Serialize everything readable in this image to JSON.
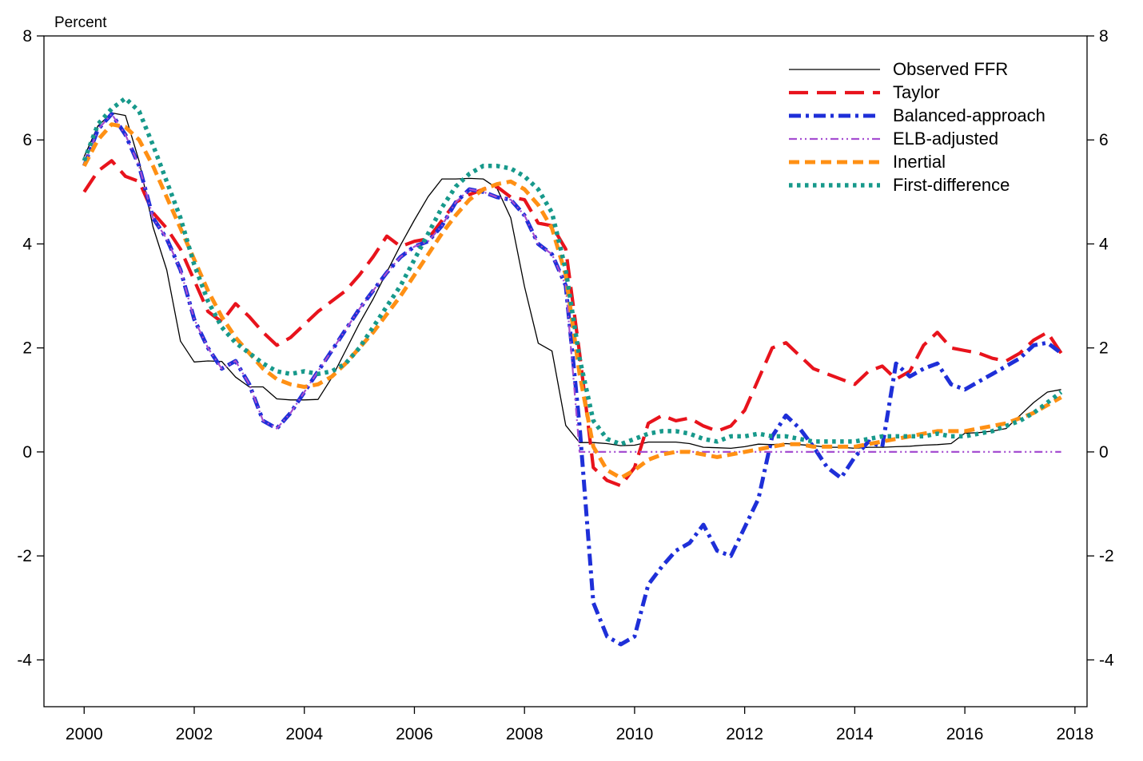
{
  "chart_data": {
    "type": "line",
    "title": "",
    "xlabel": "",
    "ylabel": "Percent",
    "xlim": [
      1999.27,
      2018.22
    ],
    "ylim": [
      -4.9,
      8
    ],
    "xticks": [
      2000,
      2002,
      2004,
      2006,
      2008,
      2010,
      2012,
      2014,
      2016,
      2018
    ],
    "yticks": [
      -4,
      -2,
      0,
      2,
      4,
      6,
      8
    ],
    "grid": false,
    "legend_position": "top-right",
    "x_start": 2000.0,
    "x_step": 0.25,
    "series": [
      {
        "name": "Observed FFR",
        "color": "#000000",
        "width": 1.3,
        "dash": "",
        "values": [
          5.68,
          6.27,
          6.52,
          6.47,
          5.59,
          4.33,
          3.5,
          2.13,
          1.73,
          1.75,
          1.74,
          1.44,
          1.25,
          1.25,
          1.02,
          1.0,
          1.0,
          1.01,
          1.43,
          1.95,
          2.47,
          2.94,
          3.46,
          3.98,
          4.46,
          4.91,
          5.25,
          5.25,
          5.26,
          5.25,
          5.07,
          4.5,
          3.18,
          2.09,
          1.94,
          0.51,
          0.18,
          0.18,
          0.16,
          0.12,
          0.13,
          0.19,
          0.19,
          0.19,
          0.16,
          0.09,
          0.08,
          0.07,
          0.1,
          0.15,
          0.14,
          0.16,
          0.14,
          0.12,
          0.09,
          0.09,
          0.07,
          0.09,
          0.09,
          0.1,
          0.11,
          0.13,
          0.14,
          0.16,
          0.36,
          0.37,
          0.4,
          0.45,
          0.7,
          0.95,
          1.15,
          1.2
        ]
      },
      {
        "name": "Taylor",
        "color": "#e8131c",
        "width": 4.2,
        "dash": "24,11",
        "values": [
          5.0,
          5.4,
          5.6,
          5.3,
          5.2,
          4.6,
          4.3,
          3.9,
          3.3,
          2.7,
          2.5,
          2.85,
          2.6,
          2.3,
          2.05,
          2.2,
          2.45,
          2.7,
          2.9,
          3.1,
          3.4,
          3.75,
          4.15,
          3.95,
          4.05,
          4.1,
          4.45,
          4.8,
          4.95,
          5.05,
          5.1,
          4.9,
          4.85,
          4.4,
          4.35,
          3.9,
          1.9,
          -0.3,
          -0.55,
          -0.65,
          -0.3,
          0.55,
          0.7,
          0.6,
          0.65,
          0.5,
          0.4,
          0.5,
          0.8,
          1.4,
          2.0,
          2.1,
          1.85,
          1.6,
          1.5,
          1.4,
          1.3,
          1.55,
          1.65,
          1.4,
          1.55,
          2.05,
          2.3,
          2.0,
          1.95,
          1.9,
          1.8,
          1.75,
          1.9,
          2.15,
          2.3,
          1.9
        ]
      },
      {
        "name": "Balanced-approach",
        "color": "#1e2fd8",
        "width": 5,
        "dash": "15,6,4,6",
        "values": [
          5.5,
          6.2,
          6.5,
          6.1,
          5.5,
          4.5,
          4.1,
          3.5,
          2.55,
          2.0,
          1.6,
          1.75,
          1.3,
          0.6,
          0.45,
          0.75,
          1.15,
          1.55,
          1.95,
          2.35,
          2.75,
          3.1,
          3.45,
          3.75,
          3.95,
          4.05,
          4.35,
          4.8,
          5.05,
          5.0,
          4.9,
          4.85,
          4.55,
          4.0,
          3.8,
          3.2,
          0.5,
          -2.9,
          -3.55,
          -3.7,
          -3.55,
          -2.55,
          -2.2,
          -1.9,
          -1.75,
          -1.4,
          -1.9,
          -2.0,
          -1.45,
          -0.9,
          0.3,
          0.7,
          0.45,
          0.1,
          -0.3,
          -0.5,
          -0.1,
          0.2,
          0.1,
          1.7,
          1.45,
          1.6,
          1.7,
          1.3,
          1.2,
          1.35,
          1.5,
          1.65,
          1.8,
          2.05,
          2.1,
          1.9
        ]
      },
      {
        "name": "ELB-adjusted",
        "color": "#a54ed1",
        "width": 2.2,
        "dash": "10,4,2,4,2,4",
        "values": [
          5.5,
          6.2,
          6.5,
          6.1,
          5.5,
          4.5,
          4.1,
          3.5,
          2.55,
          2.0,
          1.6,
          1.75,
          1.3,
          0.6,
          0.45,
          0.75,
          1.15,
          1.55,
          1.95,
          2.35,
          2.75,
          3.1,
          3.45,
          3.75,
          3.95,
          4.05,
          4.35,
          4.8,
          5.05,
          5.0,
          4.9,
          4.85,
          4.55,
          4.0,
          3.8,
          3.2,
          0.0,
          0.0,
          0.0,
          0.0,
          0.0,
          0.0,
          0.0,
          0.0,
          0.0,
          0.0,
          0.0,
          0.0,
          0.0,
          0.0,
          0.0,
          0.0,
          0.0,
          0.0,
          0.0,
          0.0,
          0.0,
          0.0,
          0.0,
          0.0,
          0.0,
          0.0,
          0.0,
          0.0,
          0.0,
          0.0,
          0.0,
          0.0,
          0.0,
          0.0,
          0.0,
          0.0
        ]
      },
      {
        "name": "Inertial",
        "color": "#ff9014",
        "width": 5,
        "dash": "13,7",
        "values": [
          5.5,
          6.0,
          6.3,
          6.25,
          6.0,
          5.5,
          4.9,
          4.3,
          3.7,
          3.1,
          2.6,
          2.2,
          1.9,
          1.6,
          1.4,
          1.3,
          1.25,
          1.3,
          1.45,
          1.7,
          2.0,
          2.3,
          2.65,
          3.0,
          3.4,
          3.8,
          4.2,
          4.55,
          4.85,
          5.05,
          5.15,
          5.2,
          5.05,
          4.75,
          4.3,
          3.4,
          1.5,
          0.1,
          -0.35,
          -0.5,
          -0.35,
          -0.15,
          -0.05,
          0.0,
          0.0,
          -0.05,
          -0.1,
          -0.05,
          0.0,
          0.05,
          0.1,
          0.15,
          0.15,
          0.1,
          0.1,
          0.1,
          0.1,
          0.15,
          0.2,
          0.25,
          0.3,
          0.35,
          0.4,
          0.4,
          0.4,
          0.45,
          0.5,
          0.55,
          0.65,
          0.75,
          0.9,
          1.05
        ]
      },
      {
        "name": "First-difference",
        "color": "#17998b",
        "width": 5.5,
        "dash": "4.5,5.5",
        "values": [
          5.6,
          6.3,
          6.6,
          6.8,
          6.55,
          5.9,
          5.2,
          4.5,
          3.6,
          2.9,
          2.4,
          2.1,
          1.9,
          1.7,
          1.55,
          1.5,
          1.55,
          1.5,
          1.55,
          1.7,
          2.0,
          2.4,
          2.8,
          3.2,
          3.7,
          4.2,
          4.7,
          5.1,
          5.35,
          5.5,
          5.5,
          5.45,
          5.3,
          5.05,
          4.6,
          3.5,
          1.8,
          0.6,
          0.25,
          0.15,
          0.25,
          0.35,
          0.4,
          0.4,
          0.35,
          0.25,
          0.2,
          0.3,
          0.3,
          0.35,
          0.3,
          0.3,
          0.25,
          0.2,
          0.2,
          0.2,
          0.2,
          0.25,
          0.3,
          0.3,
          0.3,
          0.3,
          0.35,
          0.3,
          0.3,
          0.35,
          0.4,
          0.5,
          0.6,
          0.75,
          0.95,
          1.15
        ]
      }
    ]
  }
}
